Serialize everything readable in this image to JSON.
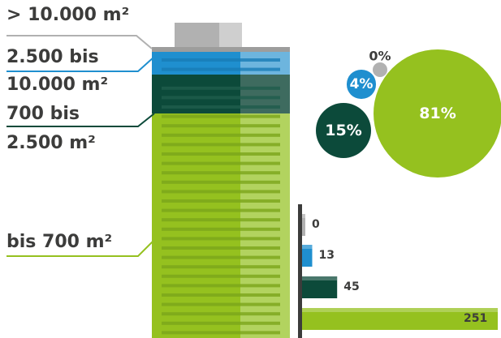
{
  "labels": {
    "cat1": "> 10.000 m²",
    "cat2_a": "2.500 bis",
    "cat2_b": "10.000 m²",
    "cat3_a": "700 bis",
    "cat3_b": "2.500 m²",
    "cat4": "bis 700 m²"
  },
  "colors": {
    "grey": "#b1b1b1",
    "blue": "#1f8fcf",
    "dark_green": "#0c4a3a",
    "green": "#95c11f",
    "text": "#3c3c3b"
  },
  "chart_data": [
    {
      "type": "pie",
      "values": [
        0,
        4,
        15,
        81
      ],
      "labels": [
        "0%",
        "4%",
        "15%",
        "81%"
      ],
      "categories": [
        "> 10.000 m²",
        "2.500 bis 10.000 m²",
        "700 bis 2.500 m²",
        "bis 700 m²"
      ]
    },
    {
      "type": "bar",
      "orientation": "horizontal",
      "categories": [
        "> 10.000 m²",
        "2.500 bis 10.000 m²",
        "700 bis 2.500 m²",
        "bis 700 m²"
      ],
      "values": [
        0,
        13,
        45,
        251
      ],
      "value_labels": [
        "0",
        "13",
        "45",
        "251"
      ]
    }
  ]
}
